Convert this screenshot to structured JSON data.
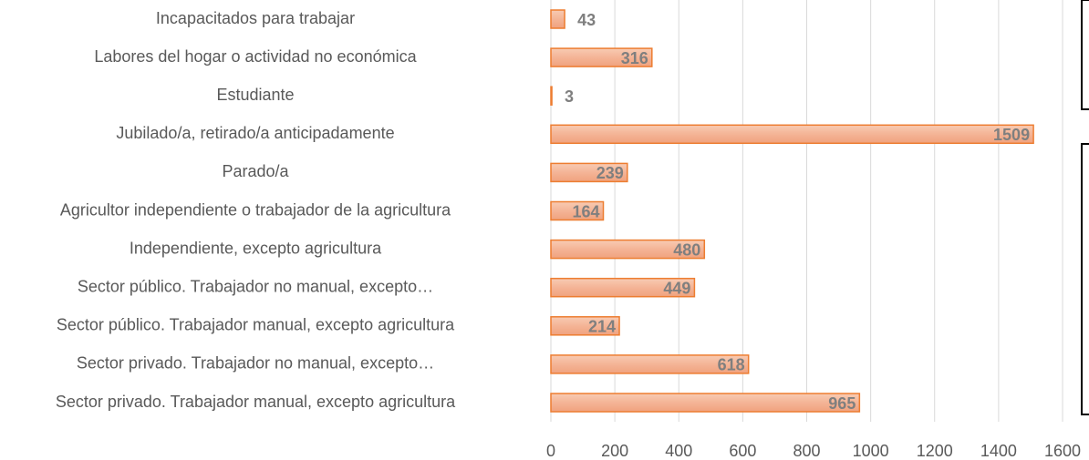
{
  "chart_data": {
    "type": "bar",
    "orientation": "horizontal",
    "categories": [
      "Incapacitados para trabajar",
      "Labores del hogar o actividad no económica",
      "Estudiante",
      "Jubilado/a, retirado/a anticipadamente",
      "Parado/a",
      "Agricultor independiente o trabajador de la agricultura",
      "Independiente, excepto agricultura",
      "Sector público. Trabajador no manual, excepto…",
      "Sector público. Trabajador manual, excepto agricultura",
      "Sector privado. Trabajador no manual, excepto…",
      "Sector privado. Trabajador manual, excepto agricultura"
    ],
    "values": [
      43,
      316,
      3,
      1509,
      239,
      164,
      480,
      449,
      214,
      618,
      965
    ],
    "color": "#f4b496",
    "edge_color": "#ed7d31",
    "xlim": [
      0,
      1600
    ],
    "xticks": [
      0,
      200,
      400,
      600,
      800,
      1000,
      1200,
      1400,
      1600
    ],
    "grid": true
  }
}
